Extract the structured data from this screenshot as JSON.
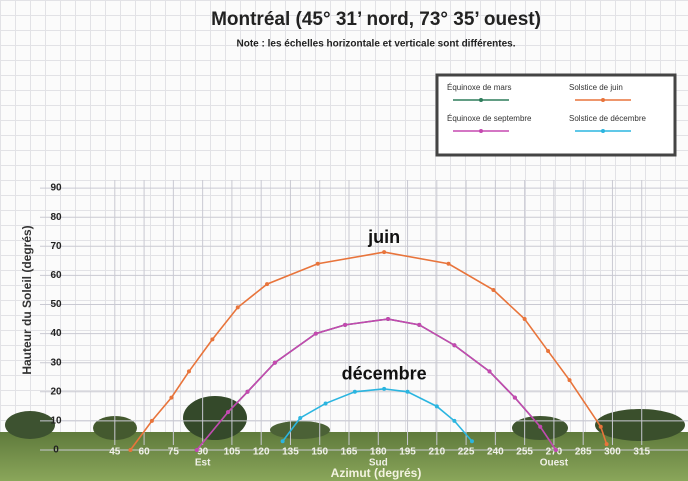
{
  "chart_data": {
    "type": "line",
    "title": "Montréal (45° 31’ nord, 73° 35’ ouest)",
    "subtitle": "Note : les échelles horizontale et verticale sont différentes.",
    "x_label": "Azimut (degrés)",
    "y_label": "Hauteur du Soleil (degrés)",
    "xlim": [
      0,
      330
    ],
    "ylim": [
      0,
      100
    ],
    "xticks": [
      45,
      60,
      75,
      90,
      105,
      120,
      135,
      150,
      165,
      180,
      195,
      210,
      225,
      240,
      255,
      270,
      285,
      300,
      315
    ],
    "yticks": [
      0,
      10,
      20,
      30,
      40,
      50,
      60,
      70,
      80,
      90
    ],
    "compass_ticks": [
      {
        "value": 90,
        "label": "Est"
      },
      {
        "value": 180,
        "label": "Sud"
      },
      {
        "value": 270,
        "label": "Ouest"
      }
    ],
    "series": [
      {
        "name": "Équinoxe de mars",
        "color": "#2e7d5b",
        "label": null,
        "x": [
          87,
          103,
          113,
          127,
          148,
          163,
          185,
          201,
          219,
          237,
          250,
          263,
          271
        ],
        "values": [
          0,
          13,
          20,
          30,
          40,
          43,
          45,
          43,
          36,
          27,
          18,
          8,
          0
        ]
      },
      {
        "name": "Solstice de juin",
        "color": "#e8743b",
        "label": "juin",
        "x": [
          53,
          64,
          74,
          83,
          95,
          108,
          123,
          149,
          183,
          216,
          239,
          255,
          267,
          278,
          294,
          297
        ],
        "values": [
          0,
          10,
          18,
          27,
          38,
          49,
          57,
          64,
          68,
          64,
          55,
          45,
          34,
          24,
          8,
          2
        ]
      },
      {
        "name": "Équinoxe de septembre",
        "color": "#c548b0",
        "label": null,
        "x": [
          87,
          103,
          113,
          127,
          148,
          163,
          185,
          201,
          219,
          237,
          250,
          263,
          271
        ],
        "values": [
          0,
          13,
          20,
          30,
          40,
          43,
          45,
          43,
          36,
          27,
          18,
          8,
          0
        ]
      },
      {
        "name": "Solstice de décembre",
        "color": "#2bb5e0",
        "label": "décembre",
        "x": [
          131,
          140,
          153,
          168,
          183,
          195,
          210,
          219,
          228
        ],
        "values": [
          3,
          11,
          16,
          20,
          21,
          20,
          15,
          10,
          3
        ]
      }
    ],
    "legend": "top-right",
    "grid": true
  }
}
